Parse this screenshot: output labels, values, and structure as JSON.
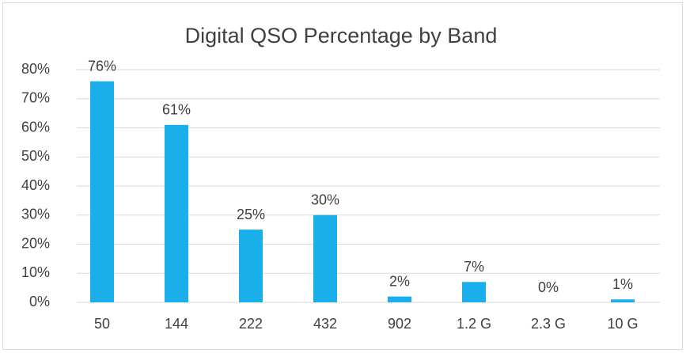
{
  "chart_data": {
    "type": "bar",
    "title": "Digital QSO Percentage by Band",
    "categories": [
      "50",
      "144",
      "222",
      "432",
      "902",
      "1.2 G",
      "2.3 G",
      "10 G"
    ],
    "values": [
      76,
      61,
      25,
      30,
      2,
      7,
      0,
      1
    ],
    "value_labels": [
      "76%",
      "61%",
      "25%",
      "30%",
      "2%",
      "7%",
      "0%",
      "1%"
    ],
    "color": "#1aaeea",
    "ylim": [
      0,
      80
    ],
    "yticks": [
      {
        "value": 0,
        "label": "0%"
      },
      {
        "value": 10,
        "label": "10%"
      },
      {
        "value": 20,
        "label": "20%"
      },
      {
        "value": 30,
        "label": "30%"
      },
      {
        "value": 40,
        "label": "40%"
      },
      {
        "value": 50,
        "label": "50%"
      },
      {
        "value": 60,
        "label": "60%"
      },
      {
        "value": 70,
        "label": "70%"
      },
      {
        "value": 80,
        "label": "80%"
      }
    ],
    "grid": true
  }
}
